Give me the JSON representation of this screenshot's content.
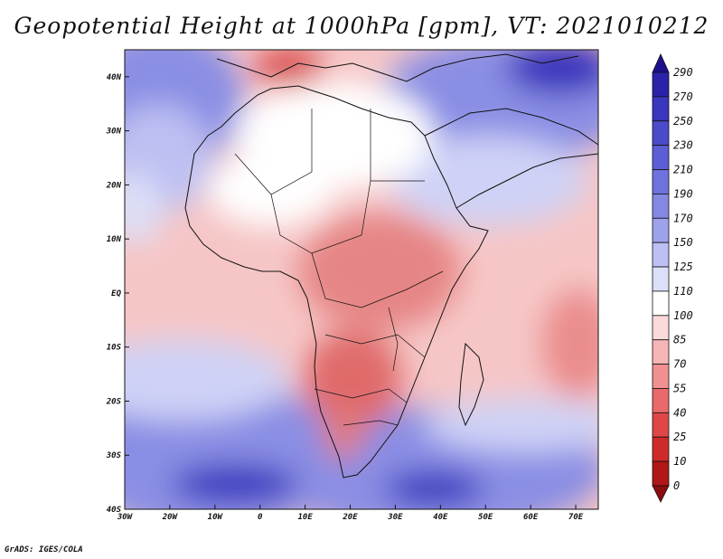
{
  "title": "Geopotential Height at 1000hPa [gpm], VT: 2021010212",
  "credit": "GrADS: IGES/COLA",
  "map": {
    "lon_range": [
      -30,
      75
    ],
    "lat_range": [
      -40,
      45
    ],
    "lon_ticks": [
      {
        "value": -30,
        "label": "30W"
      },
      {
        "value": -20,
        "label": "20W"
      },
      {
        "value": -10,
        "label": "10W"
      },
      {
        "value": 0,
        "label": "0"
      },
      {
        "value": 10,
        "label": "10E"
      },
      {
        "value": 20,
        "label": "20E"
      },
      {
        "value": 30,
        "label": "30E"
      },
      {
        "value": 40,
        "label": "40E"
      },
      {
        "value": 50,
        "label": "50E"
      },
      {
        "value": 60,
        "label": "60E"
      },
      {
        "value": 70,
        "label": "70E"
      }
    ],
    "lat_ticks": [
      {
        "value": 40,
        "label": "40N"
      },
      {
        "value": 30,
        "label": "30N"
      },
      {
        "value": 20,
        "label": "20N"
      },
      {
        "value": 10,
        "label": "10N"
      },
      {
        "value": 0,
        "label": "EQ"
      },
      {
        "value": -10,
        "label": "10S"
      },
      {
        "value": -20,
        "label": "20S"
      },
      {
        "value": -30,
        "label": "30S"
      },
      {
        "value": -40,
        "label": "40S"
      }
    ],
    "region": "Africa"
  },
  "colorbar": {
    "labels": [
      "290",
      "270",
      "250",
      "230",
      "210",
      "190",
      "170",
      "150",
      "125",
      "110",
      "100",
      "85",
      "70",
      "55",
      "40",
      "25",
      "10",
      "0"
    ],
    "colors": [
      "#1d0f8f",
      "#2a22a8",
      "#3a36bd",
      "#4b4acb",
      "#5c5ed5",
      "#6f72dc",
      "#8488e3",
      "#9da2ea",
      "#bdc0f2",
      "#dcdff8",
      "#ffffff",
      "#fbdada",
      "#f6b5b5",
      "#f09090",
      "#e86a6a",
      "#df4747",
      "#cf2a2a",
      "#b01717",
      "#8c0d0d"
    ]
  }
}
